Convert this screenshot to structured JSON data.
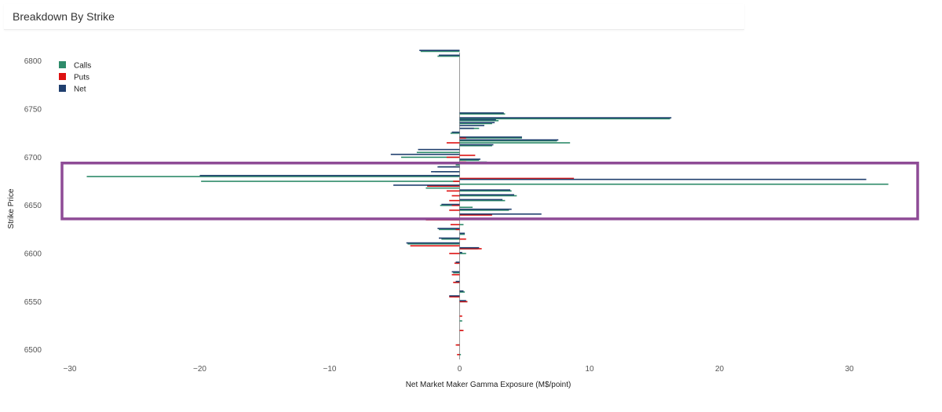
{
  "panel": {
    "title": "Breakdown By Strike"
  },
  "chart_data": {
    "type": "bar",
    "orientation": "horizontal",
    "xlabel": "Net Market Maker Gamma Exposure (M$/point)",
    "ylabel": "Strike Price",
    "xlim": [
      -30.5,
      35
    ],
    "ylim": [
      6490,
      6812
    ],
    "xticks": [
      -30,
      -20,
      -10,
      0,
      10,
      20,
      30
    ],
    "yticks": [
      6500,
      6550,
      6600,
      6650,
      6700,
      6750,
      6800
    ],
    "legend": {
      "position": "top-left"
    },
    "grid": false,
    "series": [
      {
        "name": "Calls",
        "color": "#2e8b6a",
        "points": [
          [
            6810,
            -3.0
          ],
          [
            6805,
            -1.7
          ],
          [
            6745,
            3.5
          ],
          [
            6740,
            16.2
          ],
          [
            6738,
            3.0
          ],
          [
            6735,
            2.5
          ],
          [
            6730,
            1.5
          ],
          [
            6725,
            -0.7
          ],
          [
            6720,
            4.8
          ],
          [
            6717,
            7.5
          ],
          [
            6715,
            8.5
          ],
          [
            6712,
            2.5
          ],
          [
            6705,
            -3.3
          ],
          [
            6700,
            -4.5
          ],
          [
            6697,
            1.5
          ],
          [
            6695,
            2.1
          ],
          [
            6692,
            -0.3
          ],
          [
            6690,
            -1.6
          ],
          [
            6685,
            -1.9
          ],
          [
            6680,
            -28.7
          ],
          [
            6675,
            -19.9
          ],
          [
            6672,
            33.0
          ],
          [
            6668,
            -2.6
          ],
          [
            6665,
            4.0
          ],
          [
            6660,
            4.4
          ],
          [
            6655,
            3.5
          ],
          [
            6650,
            -1.5
          ],
          [
            6648,
            1.0
          ],
          [
            6645,
            3.8
          ],
          [
            6630,
            0.3
          ],
          [
            6625,
            -1.6
          ],
          [
            6620,
            0.4
          ],
          [
            6615,
            -1.4
          ],
          [
            6610,
            -4.0
          ],
          [
            6605,
            1.4
          ],
          [
            6600,
            0.5
          ],
          [
            6590,
            -0.3
          ],
          [
            6580,
            -0.5
          ],
          [
            6570,
            -0.4
          ],
          [
            6560,
            0.4
          ],
          [
            6555,
            -0.4
          ],
          [
            6550,
            0.6
          ],
          [
            6530,
            0.2
          ],
          [
            6520,
            0.2
          ],
          [
            6505,
            -0.2
          ],
          [
            6495,
            0.1
          ]
        ]
      },
      {
        "name": "Puts",
        "color": "#dd1111",
        "points": [
          [
            6720,
            0.5
          ],
          [
            6715,
            -1.0
          ],
          [
            6702,
            1.2
          ],
          [
            6700,
            -1.0
          ],
          [
            6695,
            0.5
          ],
          [
            6690,
            -0.5
          ],
          [
            6678,
            8.8
          ],
          [
            6675,
            -0.5
          ],
          [
            6670,
            -2.5
          ],
          [
            6665,
            -1.0
          ],
          [
            6660,
            -0.6
          ],
          [
            6655,
            -0.8
          ],
          [
            6650,
            -0.6
          ],
          [
            6645,
            -0.8
          ],
          [
            6640,
            2.5
          ],
          [
            6635,
            -2.6
          ],
          [
            6630,
            -0.7
          ],
          [
            6625,
            -0.3
          ],
          [
            6615,
            0.5
          ],
          [
            6608,
            -3.8
          ],
          [
            6605,
            1.7
          ],
          [
            6600,
            -0.8
          ],
          [
            6590,
            -0.4
          ],
          [
            6578,
            -0.6
          ],
          [
            6570,
            -0.5
          ],
          [
            6555,
            -0.8
          ],
          [
            6550,
            0.6
          ],
          [
            6535,
            0.2
          ],
          [
            6520,
            0.3
          ],
          [
            6505,
            -0.3
          ],
          [
            6495,
            -0.2
          ]
        ]
      },
      {
        "name": "Net",
        "color": "#1f3f6e",
        "points": [
          [
            6811,
            -3.1
          ],
          [
            6806,
            -1.6
          ],
          [
            6746,
            3.4
          ],
          [
            6741,
            16.3
          ],
          [
            6739,
            2.8
          ],
          [
            6736,
            2.7
          ],
          [
            6733,
            1.9
          ],
          [
            6730,
            1.1
          ],
          [
            6726,
            -0.6
          ],
          [
            6721,
            4.8
          ],
          [
            6718,
            7.6
          ],
          [
            6713,
            2.6
          ],
          [
            6708,
            -3.2
          ],
          [
            6703,
            -5.3
          ],
          [
            6698,
            1.6
          ],
          [
            6694,
            2.2
          ],
          [
            6690,
            -1.7
          ],
          [
            6685,
            -2.2
          ],
          [
            6681,
            -20.0
          ],
          [
            6677,
            31.3
          ],
          [
            6671,
            -5.1
          ],
          [
            6666,
            3.9
          ],
          [
            6661,
            4.2
          ],
          [
            6656,
            3.3
          ],
          [
            6651,
            -1.4
          ],
          [
            6646,
            4.0
          ],
          [
            6641,
            6.3
          ],
          [
            6636,
            -2.8
          ],
          [
            6626,
            -1.7
          ],
          [
            6621,
            0.4
          ],
          [
            6616,
            -1.6
          ],
          [
            6611,
            -4.1
          ],
          [
            6606,
            1.5
          ],
          [
            6601,
            0.2
          ],
          [
            6591,
            -0.3
          ],
          [
            6581,
            -0.6
          ],
          [
            6571,
            -0.3
          ],
          [
            6561,
            0.3
          ],
          [
            6556,
            -0.8
          ],
          [
            6551,
            0.5
          ]
        ]
      }
    ],
    "annotations": [
      {
        "type": "highlight-box",
        "color": "#8e4b96",
        "range_strike": [
          6636,
          6694
        ]
      }
    ]
  }
}
